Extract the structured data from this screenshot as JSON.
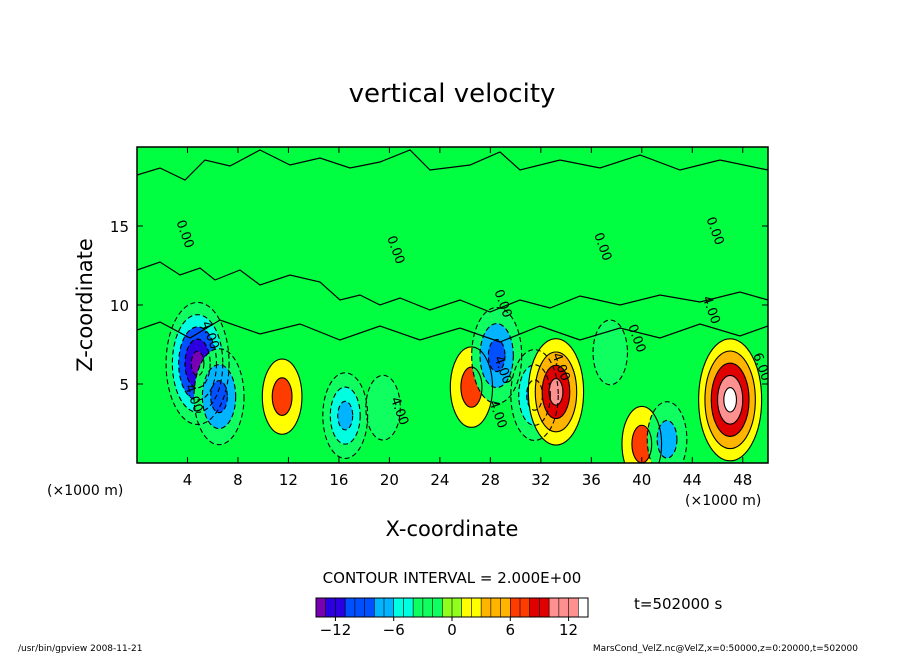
{
  "chart_data": {
    "type": "heatmap",
    "title": "vertical velocity",
    "xlabel": "X-coordinate",
    "ylabel": "Z-coordinate",
    "xunit_left": "(×1000 m)",
    "xunit_right": "(×1000 m)",
    "xlim": [
      0,
      50
    ],
    "ylim": [
      0,
      20
    ],
    "xticks": [
      4,
      8,
      12,
      16,
      20,
      24,
      28,
      32,
      36,
      40,
      44,
      48
    ],
    "yticks": [
      5,
      10,
      15
    ],
    "contour_interval_text": "CONTOUR INTERVAL = 2.000E+00",
    "time_text": "t=502000 s",
    "colorbar": {
      "range": [
        -14,
        14
      ],
      "ticks": [
        -12,
        -6,
        0,
        6,
        12
      ],
      "tick_labels": [
        "−12",
        "−6",
        "0",
        "6",
        "12"
      ],
      "colors": [
        "#7a00b4",
        "#2a00e0",
        "#0050ff",
        "#00b4ff",
        "#00ffe0",
        "#10ff60",
        "#90ff20",
        "#ffff00",
        "#ffb400",
        "#ff3c00",
        "#e00000",
        "#ff9090",
        "#ffffff"
      ]
    },
    "background_color": "#00ff40",
    "features": [
      {
        "x": 4.8,
        "z": 6.3,
        "value": -15,
        "kind": "downdraft core"
      },
      {
        "x": 6.5,
        "z": 4.2,
        "value": -10,
        "kind": "downdraft"
      },
      {
        "x": 11.5,
        "z": 4.2,
        "value": 6,
        "kind": "updraft"
      },
      {
        "x": 16.5,
        "z": 3.0,
        "value": -8,
        "kind": "downdraft"
      },
      {
        "x": 19.5,
        "z": 3.5,
        "value": -4,
        "kind": "downdraft"
      },
      {
        "x": 26.5,
        "z": 4.8,
        "value": 7,
        "kind": "updraft"
      },
      {
        "x": 28.5,
        "z": 6.8,
        "value": -10,
        "kind": "downdraft"
      },
      {
        "x": 31.5,
        "z": 4.3,
        "value": -9,
        "kind": "downdraft"
      },
      {
        "x": 33.2,
        "z": 4.5,
        "value": 12,
        "kind": "updraft"
      },
      {
        "x": 37.5,
        "z": 7.0,
        "value": -4,
        "kind": "downdraft"
      },
      {
        "x": 40.0,
        "z": 1.2,
        "value": 6,
        "kind": "updraft"
      },
      {
        "x": 42.0,
        "z": 1.5,
        "value": -6,
        "kind": "downdraft"
      },
      {
        "x": 47.0,
        "z": 4.0,
        "value": 15,
        "kind": "updraft core"
      }
    ],
    "contour_labels": [
      "4.00",
      "4.00",
      "4.00",
      "4.00",
      "4.00",
      "4.00",
      "4.00",
      "0.00",
      "0.00",
      "0.00",
      "0.00",
      "0.00",
      "0.00",
      "6.00"
    ]
  },
  "footer": {
    "left": "/usr/bin/gpview  2008-11-21",
    "right": "MarsCond_VelZ.nc@VelZ,x=0:50000,z=0:20000,t=502000"
  }
}
